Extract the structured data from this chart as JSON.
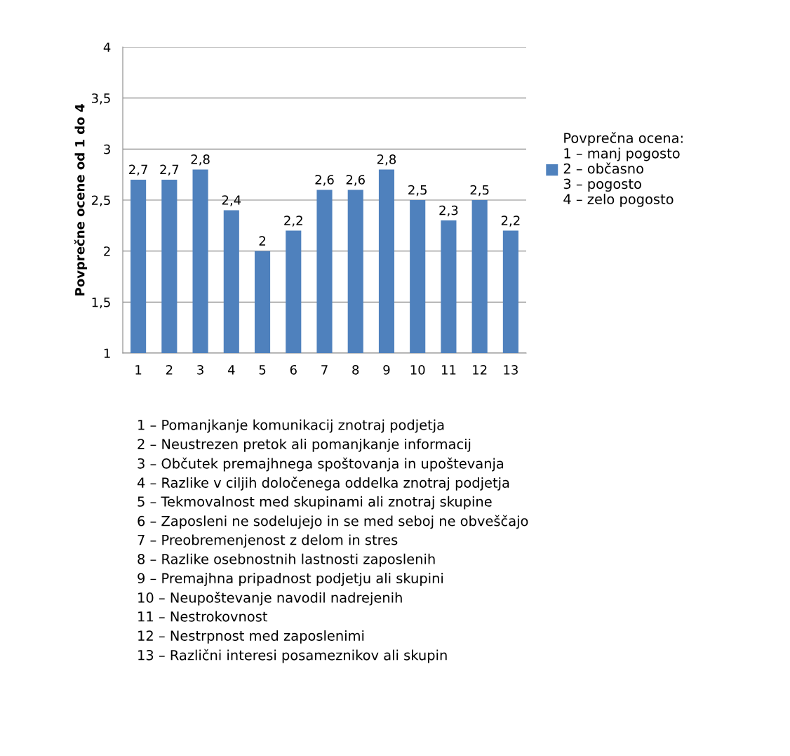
{
  "chart_data": {
    "type": "bar",
    "ylabel": "Povprečne ocene od 1 do 4",
    "categories": [
      "1",
      "2",
      "3",
      "4",
      "5",
      "6",
      "7",
      "8",
      "9",
      "10",
      "11",
      "12",
      "13"
    ],
    "series": [
      {
        "name": "Povprečna ocena:\n1 – manj pogosto\n2 – občasno\n3 – pogosto\n4 – zelo pogosto",
        "color": "#4f81bd",
        "values": [
          2.7,
          2.7,
          2.8,
          2.4,
          2.0,
          2.2,
          2.6,
          2.6,
          2.8,
          2.5,
          2.3,
          2.5,
          2.2
        ],
        "value_labels": [
          "2,7",
          "2,7",
          "2,8",
          "2,4",
          "2",
          "2,2",
          "2,6",
          "2,6",
          "2,8",
          "2,5",
          "2,3",
          "2,5",
          "2,2"
        ]
      }
    ],
    "ylim": [
      1,
      4
    ],
    "yticks": [
      1,
      {
        "value": 1.5,
        "label": "1,5"
      },
      2,
      {
        "value": 2.5,
        "label": "2,5"
      },
      3,
      {
        "value": 3.5,
        "label": "3,5"
      },
      4
    ],
    "grid": "y",
    "legend": "right",
    "annotations": [
      "1 – Pomanjkanje komunikacij znotraj podjetja",
      "2 – Neustrezen pretok ali pomanjkanje informacij",
      "3 – Občutek premajhnega spoštovanja in upoštevanja",
      "4 – Razlike v ciljih določenega oddelka znotraj podjetja",
      "5 – Tekmovalnost med skupinami ali znotraj skupine",
      "6 – Zaposleni ne sodelujejo in se med seboj ne obveščajo",
      "7 – Preobremenjenost z delom in stres",
      "8 – Razlike osebnostnih lastnosti zaposlenih",
      "9 – Premajhna pripadnost podjetju ali skupini",
      "10 – Neupoštevanje navodil nadrejenih",
      "11 – Nestrokovnost",
      "12 – Nestrpnost med zaposlenimi",
      "13 – Različni interesi posameznikov ali skupin"
    ]
  }
}
